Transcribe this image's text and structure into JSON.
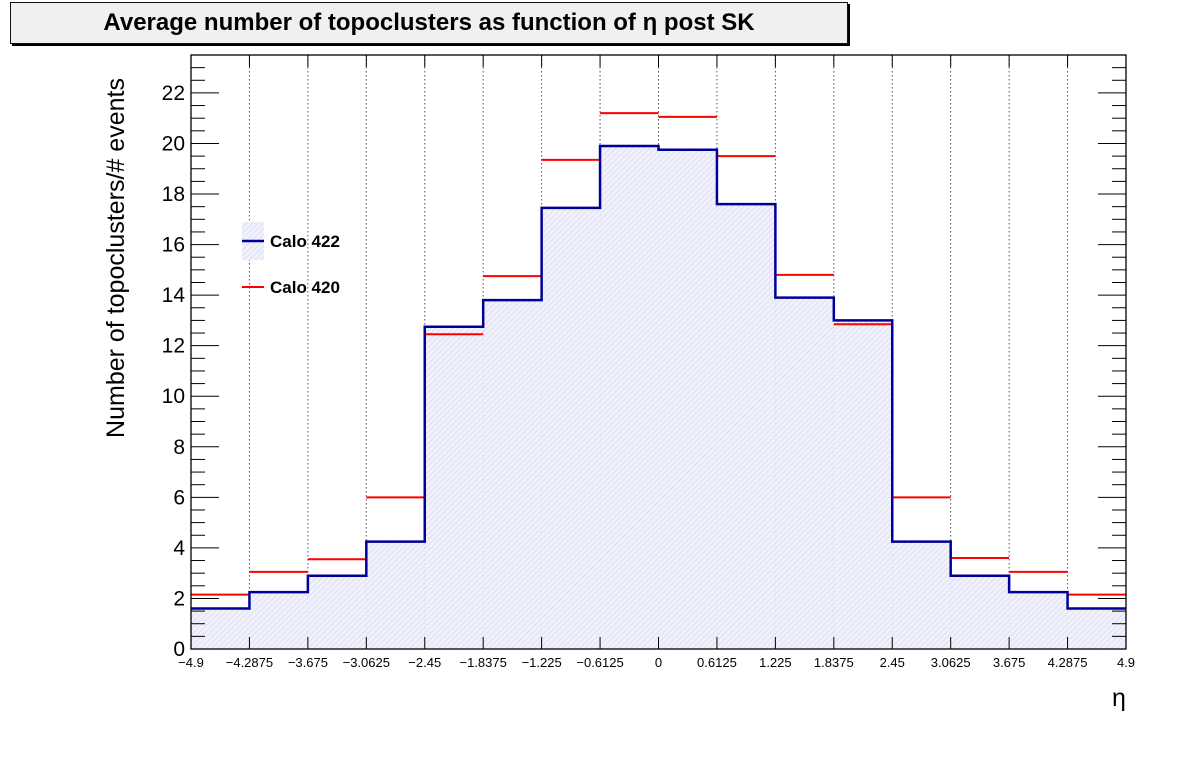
{
  "chart_data": {
    "type": "bar",
    "title": "Average number of topoclusters as function of η post SK",
    "xlabel": "η",
    "ylabel": "Number of topoclusters/# events",
    "xlim": [
      -4.9,
      4.9
    ],
    "ylim": [
      0,
      23.5
    ],
    "grid": "vertical dotted",
    "x_ticks": [
      "−4.9",
      "−4.2875",
      "−3.675",
      "−3.0625",
      "−2.45",
      "−1.8375",
      "−1.225",
      "−0.6125",
      "0",
      "0.6125",
      "1.225",
      "1.8375",
      "2.45",
      "3.0625",
      "3.675",
      "4.2875",
      "4.9"
    ],
    "x_edges": [
      -4.9,
      -4.2875,
      -3.675,
      -3.0625,
      -2.45,
      -1.8375,
      -1.225,
      -0.6125,
      0,
      0.6125,
      1.225,
      1.8375,
      2.45,
      3.0625,
      3.675,
      4.2875,
      4.9
    ],
    "y_ticks": [
      "0",
      "2",
      "4",
      "6",
      "8",
      "10",
      "12",
      "14",
      "16",
      "18",
      "20",
      "22"
    ],
    "y_tick_values": [
      0,
      2,
      4,
      6,
      8,
      10,
      12,
      14,
      16,
      18,
      20,
      22
    ],
    "legend_position": "left",
    "series": [
      {
        "name": "Calo 422",
        "color": "#000099",
        "fill": "hatched light blue",
        "values": [
          1.6,
          2.25,
          2.9,
          4.25,
          12.75,
          13.8,
          17.45,
          19.9,
          19.75,
          17.6,
          13.9,
          13.0,
          4.25,
          2.9,
          2.25,
          1.6
        ]
      },
      {
        "name": "Calo 420",
        "color": "#ff0000",
        "fill": "none",
        "values": [
          2.15,
          3.05,
          3.55,
          6.0,
          12.45,
          14.75,
          19.35,
          21.2,
          21.05,
          19.5,
          14.8,
          12.85,
          6.0,
          3.6,
          3.05,
          2.15
        ]
      }
    ]
  }
}
